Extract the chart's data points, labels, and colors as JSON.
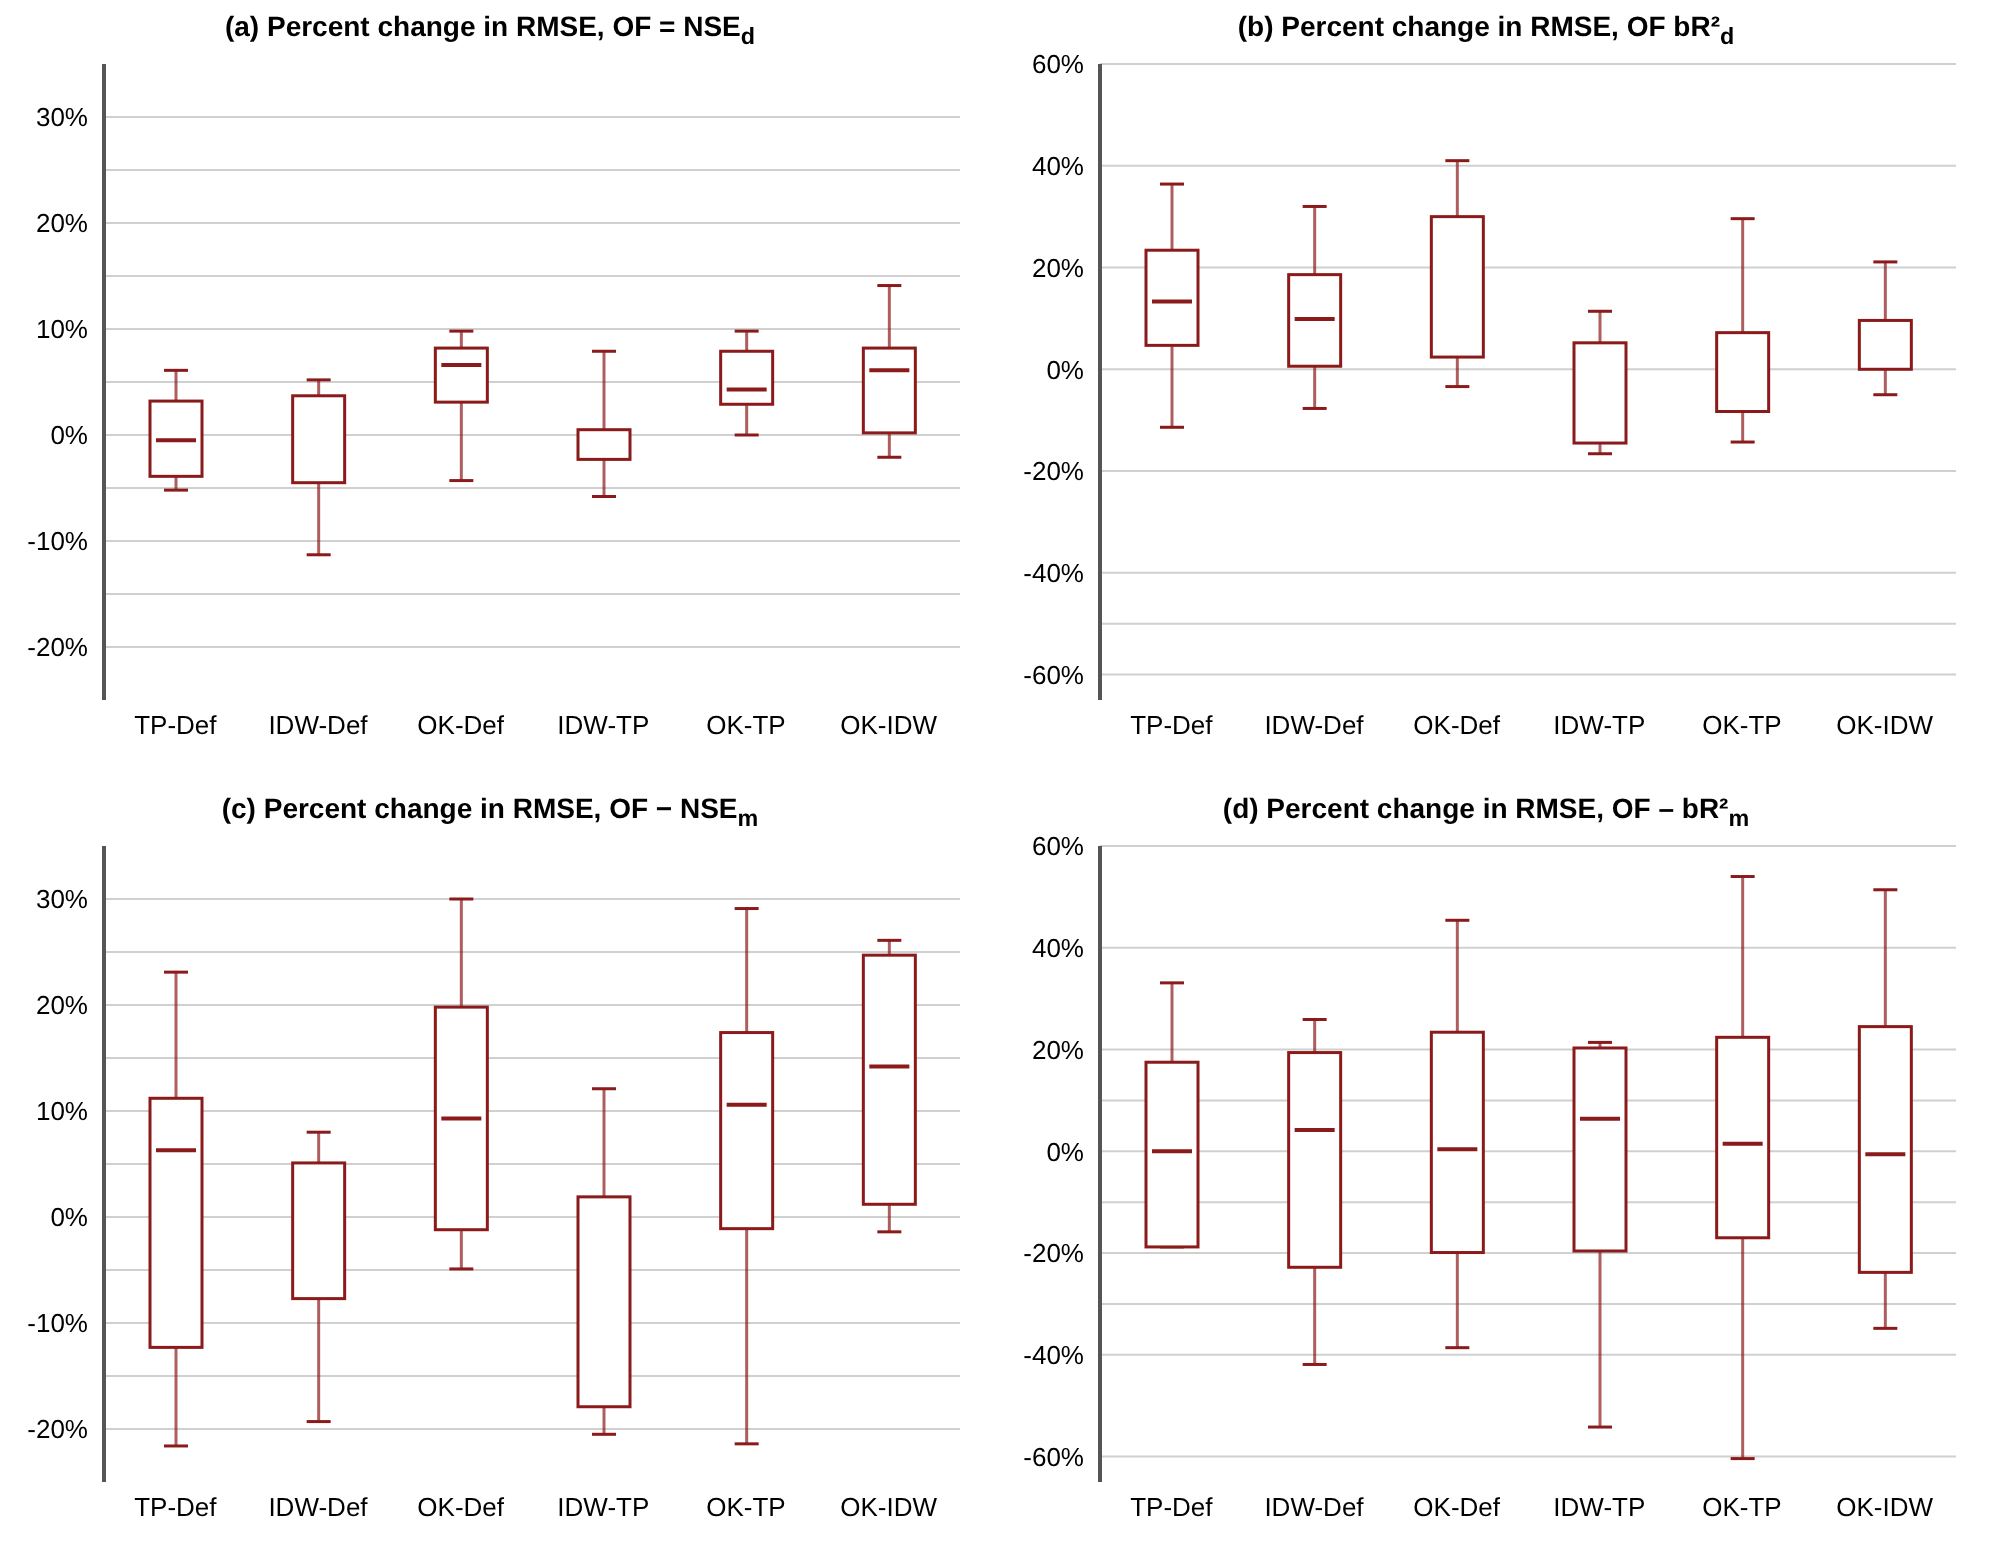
{
  "chart_data": [
    {
      "type": "box",
      "title": "(a) Percent change in RMSE, OF = NSE$_{d}$",
      "categories": [
        "TP-Def",
        "IDW-Def",
        "OK-Def",
        "IDW-TP",
        "OK-TP",
        "OK-IDW"
      ],
      "color": "#8b1a1a",
      "ylim": [
        -25,
        35
      ],
      "yticks": [
        {
          "value": -20,
          "label": "-20%"
        },
        {
          "value": -15,
          "label": null
        },
        {
          "value": -10,
          "label": "-10%"
        },
        {
          "value": -5,
          "label": null
        },
        {
          "value": 0,
          "label": "0%"
        },
        {
          "value": 5,
          "label": null
        },
        {
          "value": 10,
          "label": "10%"
        },
        {
          "value": 15,
          "label": null
        },
        {
          "value": 20,
          "label": "20%"
        },
        {
          "value": 25,
          "label": null
        },
        {
          "value": 30,
          "label": "30%"
        }
      ],
      "grid": "y",
      "legend": false,
      "boxes": [
        {
          "low": -5.2,
          "q1": -3.9,
          "median": -0.5,
          "q3": 3.2,
          "high": 6.1
        },
        {
          "low": -11.3,
          "q1": -4.5,
          "median": null,
          "q3": 3.7,
          "high": 5.2
        },
        {
          "low": -4.3,
          "q1": 3.1,
          "median": 6.6,
          "q3": 8.2,
          "high": 9.8
        },
        {
          "low": -5.8,
          "q1": -2.3,
          "median": null,
          "q3": 0.5,
          "high": 7.9
        },
        {
          "low": 0,
          "q1": 2.9,
          "median": 4.3,
          "q3": 7.9,
          "high": 9.8
        },
        {
          "low": -2.1,
          "q1": 0.2,
          "median": 6.1,
          "q3": 8.2,
          "high": 14.1
        }
      ]
    },
    {
      "type": "box",
      "title": "(b) Percent change in RMSE, OF bR²$_{d}$",
      "categories": [
        "TP-Def",
        "IDW-Def",
        "OK-Def",
        "IDW-TP",
        "OK-TP",
        "OK-IDW"
      ],
      "color": "#8b1a1a",
      "ylim": [
        -65,
        60
      ],
      "yticks": [
        {
          "value": -60,
          "label": "-60%"
        },
        {
          "value": -50,
          "label": null
        },
        {
          "value": -40,
          "label": "-40%"
        },
        {
          "value": -20,
          "label": "-20%"
        },
        {
          "value": 0,
          "label": "0%"
        },
        {
          "value": 20,
          "label": "20%"
        },
        {
          "value": 40,
          "label": "40%"
        },
        {
          "value": 60,
          "label": "60%"
        }
      ],
      "grid": "y",
      "legend": false,
      "boxes": [
        {
          "low": -11.4,
          "q1": 4.7,
          "median": 13.3,
          "q3": 23.4,
          "high": 36.4
        },
        {
          "low": -7.7,
          "q1": 0.6,
          "median": 9.9,
          "q3": 18.6,
          "high": 32
        },
        {
          "low": -3.4,
          "q1": 2.4,
          "median": null,
          "q3": 30,
          "high": 41
        },
        {
          "low": -16.6,
          "q1": -14.5,
          "median": null,
          "q3": 5.2,
          "high": 11.4
        },
        {
          "low": -14.3,
          "q1": -8.3,
          "median": null,
          "q3": 7.2,
          "high": 29.6
        },
        {
          "low": -5,
          "q1": 0,
          "median": null,
          "q3": 9.6,
          "high": 21.1
        }
      ]
    },
    {
      "type": "box",
      "title": "(c) Percent change in RMSE, OF − NSE$_{m}$",
      "categories": [
        "TP-Def",
        "IDW-Def",
        "OK-Def",
        "IDW-TP",
        "OK-TP",
        "OK-IDW"
      ],
      "color": "#8b1a1a",
      "ylim": [
        -25,
        35
      ],
      "yticks": [
        {
          "value": -20,
          "label": "-20%"
        },
        {
          "value": -15,
          "label": null
        },
        {
          "value": -10,
          "label": "-10%"
        },
        {
          "value": -5,
          "label": null
        },
        {
          "value": 0,
          "label": "0%"
        },
        {
          "value": 5,
          "label": null
        },
        {
          "value": 10,
          "label": "10%"
        },
        {
          "value": 15,
          "label": null
        },
        {
          "value": 20,
          "label": "20%"
        },
        {
          "value": 25,
          "label": null
        },
        {
          "value": 30,
          "label": "30%"
        }
      ],
      "grid": "y",
      "legend": false,
      "boxes": [
        {
          "low": -21.6,
          "q1": -12.3,
          "median": 6.3,
          "q3": 11.2,
          "high": 23.1
        },
        {
          "low": -19.3,
          "q1": -7.7,
          "median": null,
          "q3": 5.1,
          "high": 8
        },
        {
          "low": -4.9,
          "q1": -1.2,
          "median": 9.3,
          "q3": 19.8,
          "high": 30
        },
        {
          "low": -20.5,
          "q1": -17.9,
          "median": null,
          "q3": 1.9,
          "high": 12.1
        },
        {
          "low": -21.4,
          "q1": -1.1,
          "median": 10.6,
          "q3": 17.4,
          "high": 29.1
        },
        {
          "low": -1.4,
          "q1": 1.2,
          "median": 14.2,
          "q3": 24.7,
          "high": 26.1
        }
      ]
    },
    {
      "type": "box",
      "title": "(d) Percent change in RMSE, OF – bR²$_{m}$",
      "categories": [
        "TP-Def",
        "IDW-Def",
        "OK-Def",
        "IDW-TP",
        "OK-TP",
        "OK-IDW"
      ],
      "color": "#8b1a1a",
      "ylim": [
        -65,
        60
      ],
      "yticks": [
        {
          "value": -60,
          "label": "-60%"
        },
        {
          "value": -40,
          "label": "-40%"
        },
        {
          "value": -30,
          "label": null
        },
        {
          "value": -20,
          "label": "-20%"
        },
        {
          "value": -10,
          "label": null
        },
        {
          "value": 0,
          "label": "0%"
        },
        {
          "value": 10,
          "label": null
        },
        {
          "value": 20,
          "label": "20%"
        },
        {
          "value": 40,
          "label": "40%"
        },
        {
          "value": 60,
          "label": "60%"
        }
      ],
      "grid": "y",
      "legend": false,
      "boxes": [
        {
          "low": -18.8,
          "q1": -18.8,
          "median": 0,
          "q3": 17.5,
          "high": 33.1
        },
        {
          "low": -41.9,
          "q1": -22.8,
          "median": 4.2,
          "q3": 19.4,
          "high": 25.9
        },
        {
          "low": -38.6,
          "q1": -19.9,
          "median": 0.4,
          "q3": 23.4,
          "high": 45.4
        },
        {
          "low": -54.2,
          "q1": -19.6,
          "median": 6.4,
          "q3": 20.3,
          "high": 21.4
        },
        {
          "low": -60.4,
          "q1": -17,
          "median": 1.5,
          "q3": 22.4,
          "high": 54
        },
        {
          "low": -34.8,
          "q1": -23.8,
          "median": -0.6,
          "q3": 24.5,
          "high": 51.4
        }
      ]
    }
  ]
}
